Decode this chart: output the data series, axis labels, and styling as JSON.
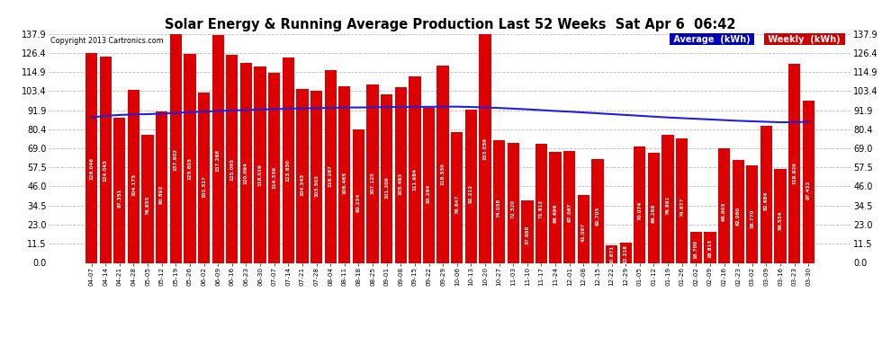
{
  "title": "Solar Energy & Running Average Production Last 52 Weeks  Sat Apr 6  06:42",
  "copyright": "Copyright 2013 Cartronics.com",
  "bar_color": "#DD0000",
  "avg_line_color": "#2020DD",
  "background_color": "#FFFFFF",
  "grid_color": "#BBBBBB",
  "legend_avg_bg": "#0000BB",
  "legend_weekly_bg": "#CC0000",
  "legend_avg_text": "Average  (kWh)",
  "legend_weekly_text": "Weekly  (kWh)",
  "yticks": [
    0.0,
    11.5,
    23.0,
    34.5,
    46.0,
    57.5,
    69.0,
    80.4,
    91.9,
    103.4,
    114.9,
    126.4,
    137.9
  ],
  "categories": [
    "04-07",
    "04-14",
    "04-21",
    "04-28",
    "05-05",
    "05-12",
    "05-19",
    "05-26",
    "06-02",
    "06-09",
    "06-16",
    "06-23",
    "06-30",
    "07-07",
    "07-14",
    "07-21",
    "07-28",
    "08-04",
    "08-11",
    "08-18",
    "08-25",
    "09-01",
    "09-08",
    "09-15",
    "09-22",
    "09-29",
    "10-06",
    "10-13",
    "10-20",
    "10-27",
    "11-03",
    "11-10",
    "11-17",
    "11-24",
    "12-01",
    "12-08",
    "12-15",
    "12-22",
    "12-29",
    "01-05",
    "01-12",
    "01-19",
    "01-26",
    "02-02",
    "02-09",
    "02-16",
    "02-23",
    "03-02",
    "03-09",
    "03-16",
    "03-23",
    "03-30"
  ],
  "weekly_values": [
    126.046,
    124.043,
    87.351,
    104.175,
    76.855,
    90.892,
    137.902,
    125.603,
    102.517,
    137.268,
    125.095,
    120.094,
    118.019,
    114.336,
    123.65,
    104.545,
    103.503,
    116.267,
    106.465,
    80.234,
    107.125,
    101.209,
    105.493,
    111.984,
    93.264,
    118.53,
    78.647,
    92.212,
    153.056,
    74.038,
    72.32,
    37.688,
    71.812,
    66.696,
    67.067,
    41.097,
    62.705,
    10.671,
    12.218,
    70.074,
    66.288,
    76.881,
    74.877,
    18.7,
    18.813,
    68.903,
    62.06,
    58.77,
    82.684,
    56.534,
    119.92,
    97.432
  ],
  "avg_values": [
    87.5,
    88.5,
    89.0,
    89.3,
    89.5,
    89.8,
    90.2,
    90.7,
    91.0,
    91.4,
    91.7,
    92.0,
    92.3,
    92.5,
    92.8,
    93.0,
    93.1,
    93.3,
    93.5,
    93.5,
    93.6,
    93.7,
    93.8,
    93.9,
    93.9,
    94.0,
    94.0,
    93.8,
    93.5,
    93.2,
    92.8,
    92.4,
    91.9,
    91.4,
    91.0,
    90.5,
    90.0,
    89.5,
    89.0,
    88.5,
    88.0,
    87.5,
    87.1,
    86.7,
    86.3,
    85.9,
    85.5,
    85.2,
    84.9,
    84.6,
    84.6,
    84.9
  ],
  "ylim": [
    0.0,
    137.9
  ],
  "figsize": [
    9.9,
    3.75
  ],
  "dpi": 100
}
